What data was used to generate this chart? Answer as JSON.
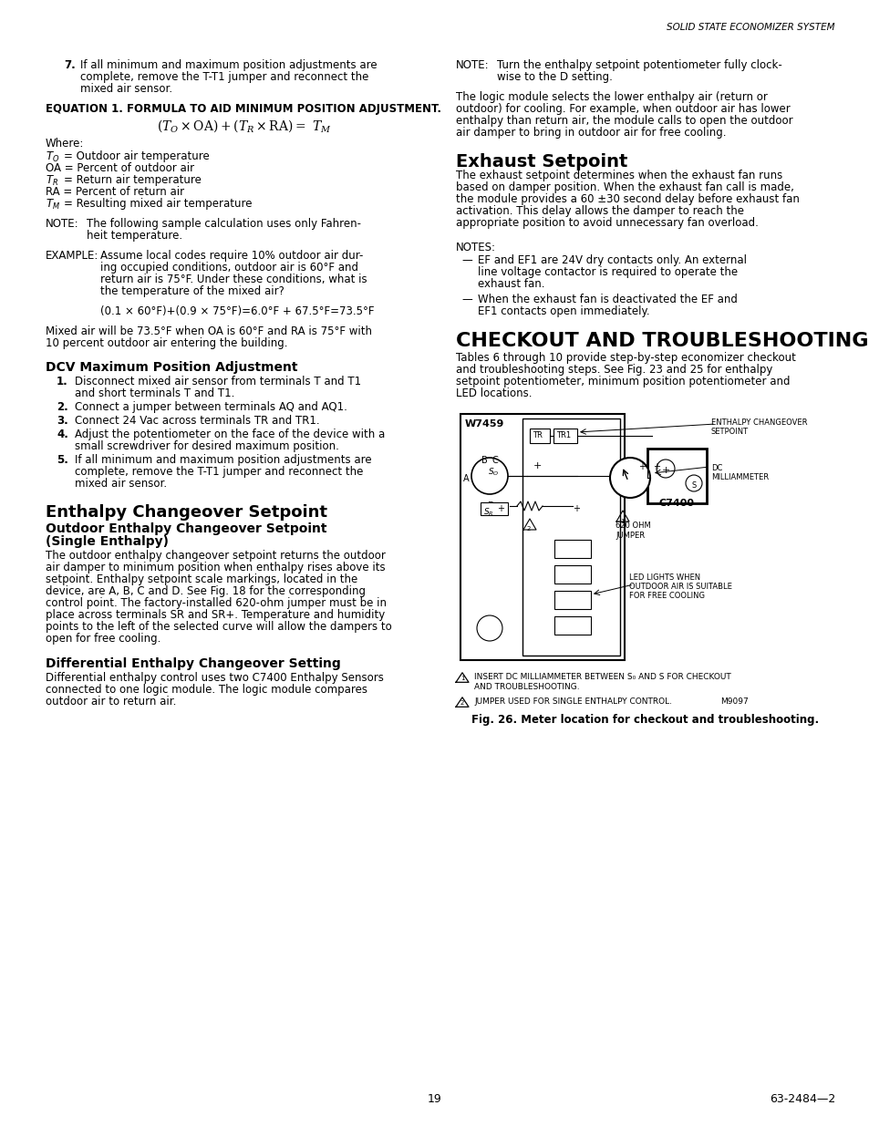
{
  "page_bg": "#ffffff",
  "header_italic": "SOLID STATE ECONOMIZER SYSTEM",
  "page_number": "19",
  "footer_right": "63-2484—2"
}
